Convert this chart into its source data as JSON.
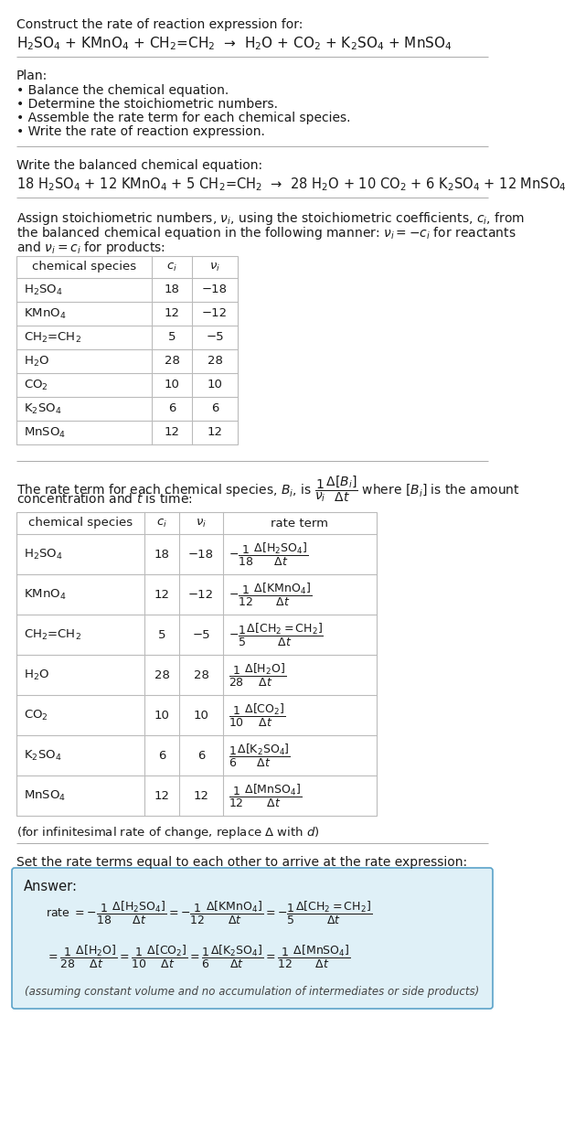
{
  "bg_color": "#ffffff",
  "text_color": "#1a1a1a",
  "answer_box_color": "#dff0f7",
  "answer_box_border": "#5ba3c9",
  "table_border_color": "#bbbbbb",
  "sections": {
    "title": "Construct the rate of reaction expression for:",
    "reaction_unbalanced": "H$_2$SO$_4$ + KMnO$_4$ + CH$_2$=CH$_2$  →  H$_2$O + CO$_2$ + K$_2$SO$_4$ + MnSO$_4$",
    "plan_header": "Plan:",
    "plan_items": [
      "• Balance the chemical equation.",
      "• Determine the stoichiometric numbers.",
      "• Assemble the rate term for each chemical species.",
      "• Write the rate of reaction expression."
    ],
    "balanced_header": "Write the balanced chemical equation:",
    "reaction_balanced": "18 H$_2$SO$_4$ + 12 KMnO$_4$ + 5 CH$_2$=CH$_2$  →  28 H$_2$O + 10 CO$_2$ + 6 K$_2$SO$_4$ + 12 MnSO$_4$",
    "assign_text": [
      "Assign stoichiometric numbers, $\\nu_i$, using the stoichiometric coefficients, $c_i$, from",
      "the balanced chemical equation in the following manner: $\\nu_i = -c_i$ for reactants",
      "and $\\nu_i = c_i$ for products:"
    ],
    "table1_headers": [
      "chemical species",
      "$c_i$",
      "$\\nu_i$"
    ],
    "table1_data": [
      [
        "H$_2$SO$_4$",
        "18",
        "−18"
      ],
      [
        "KMnO$_4$",
        "12",
        "−12"
      ],
      [
        "CH$_2$=CH$_2$",
        "5",
        "−5"
      ],
      [
        "H$_2$O",
        "28",
        "28"
      ],
      [
        "CO$_2$",
        "10",
        "10"
      ],
      [
        "K$_2$SO$_4$",
        "6",
        "6"
      ],
      [
        "MnSO$_4$",
        "12",
        "12"
      ]
    ],
    "rate_term_text": [
      "The rate term for each chemical species, $B_i$, is $\\dfrac{1}{\\nu_i}\\dfrac{\\Delta[B_i]}{\\Delta t}$ where $[B_i]$ is the amount",
      "concentration and $t$ is time:"
    ],
    "table2_headers": [
      "chemical species",
      "$c_i$",
      "$\\nu_i$",
      "rate term"
    ],
    "table2_data": [
      [
        "H$_2$SO$_4$",
        "18",
        "−18",
        "$-\\dfrac{1}{18}\\dfrac{\\Delta[\\mathrm{H_2SO_4}]}{\\Delta t}$"
      ],
      [
        "KMnO$_4$",
        "12",
        "−12",
        "$-\\dfrac{1}{12}\\dfrac{\\Delta[\\mathrm{KMnO_4}]}{\\Delta t}$"
      ],
      [
        "CH$_2$=CH$_2$",
        "5",
        "−5",
        "$-\\dfrac{1}{5}\\dfrac{\\Delta[\\mathrm{CH_2{=}CH_2}]}{\\Delta t}$"
      ],
      [
        "H$_2$O",
        "28",
        "28",
        "$\\dfrac{1}{28}\\dfrac{\\Delta[\\mathrm{H_2O}]}{\\Delta t}$"
      ],
      [
        "CO$_2$",
        "10",
        "10",
        "$\\dfrac{1}{10}\\dfrac{\\Delta[\\mathrm{CO_2}]}{\\Delta t}$"
      ],
      [
        "K$_2$SO$_4$",
        "6",
        "6",
        "$\\dfrac{1}{6}\\dfrac{\\Delta[\\mathrm{K_2SO_4}]}{\\Delta t}$"
      ],
      [
        "MnSO$_4$",
        "12",
        "12",
        "$\\dfrac{1}{12}\\dfrac{\\Delta[\\mathrm{MnSO_4}]}{\\Delta t}$"
      ]
    ],
    "infinitesimal_note": "(for infinitesimal rate of change, replace Δ with $d$)",
    "set_rate_text": "Set the rate terms equal to each other to arrive at the rate expression:",
    "answer_label": "Answer:",
    "answer_footnote": "(assuming constant volume and no accumulation of intermediates or side products)"
  }
}
